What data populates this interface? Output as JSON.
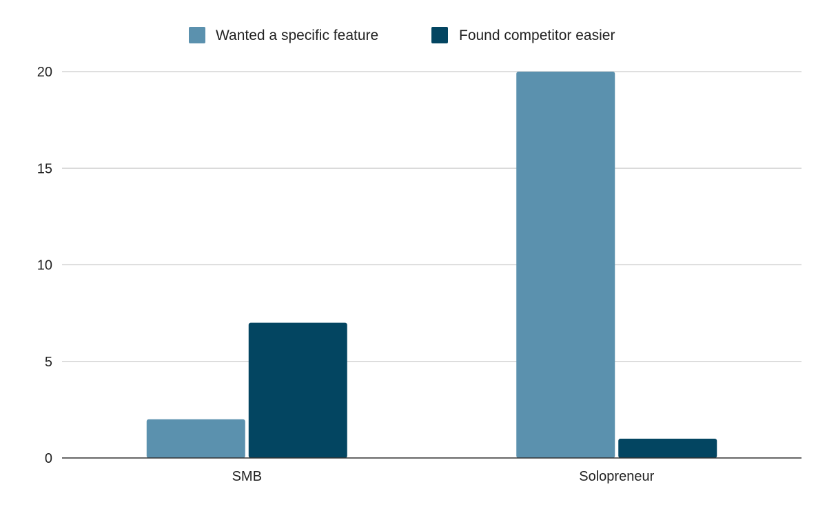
{
  "chart_data": {
    "type": "bar",
    "categories": [
      "SMB",
      "Solopreneur"
    ],
    "series": [
      {
        "name": "Wanted a specific feature",
        "values": [
          2,
          20
        ],
        "color": "#5b91ae"
      },
      {
        "name": "Found competitor easier",
        "values": [
          7,
          1
        ],
        "color": "#034561"
      }
    ],
    "title": "",
    "xlabel": "",
    "ylabel": "",
    "ylim": [
      0,
      20
    ],
    "yticks": [
      0,
      5,
      10,
      15,
      20
    ],
    "ytick_labels": [
      "0",
      "5",
      "10",
      "15",
      "20"
    ],
    "grid": true,
    "legend_position": "top-center"
  }
}
